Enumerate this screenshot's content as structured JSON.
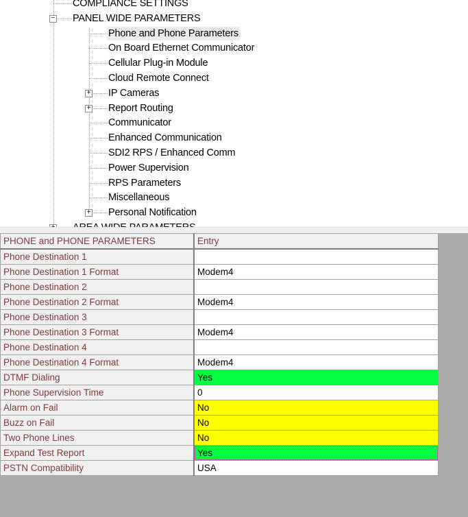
{
  "tree": {
    "items": [
      {
        "label": "COMPLIANCE SETTINGS",
        "level": 1,
        "expander": "none"
      },
      {
        "label": "PANEL WIDE PARAMETERS",
        "level": 1,
        "expander": "minus"
      },
      {
        "label": "Phone and Phone Parameters",
        "level": 2,
        "expander": "none",
        "selected": true
      },
      {
        "label": "On Board Ethernet Communicator",
        "level": 2,
        "expander": "none"
      },
      {
        "label": "Cellular Plug-in Module",
        "level": 2,
        "expander": "none"
      },
      {
        "label": "Cloud Remote Connect",
        "level": 2,
        "expander": "none"
      },
      {
        "label": "IP Cameras",
        "level": 2,
        "expander": "plus"
      },
      {
        "label": "Report Routing",
        "level": 2,
        "expander": "plus"
      },
      {
        "label": "Communicator",
        "level": 2,
        "expander": "none"
      },
      {
        "label": "Enhanced Communication",
        "level": 2,
        "expander": "none"
      },
      {
        "label": "SDI2 RPS / Enhanced Comm",
        "level": 2,
        "expander": "none"
      },
      {
        "label": "Power Supervision",
        "level": 2,
        "expander": "none"
      },
      {
        "label": "RPS Parameters",
        "level": 2,
        "expander": "none"
      },
      {
        "label": "Miscellaneous",
        "level": 2,
        "expander": "none"
      },
      {
        "label": "Personal Notification",
        "level": 2,
        "expander": "plus"
      },
      {
        "label": "AREA WIDE PARAMETERS",
        "level": 1,
        "expander": "plus"
      }
    ]
  },
  "grid": {
    "header": {
      "name": "PHONE and PHONE PARAMETERS",
      "entry": "Entry"
    },
    "rows": [
      {
        "name": "Phone Destination 1",
        "value": "",
        "color": "#ffffff"
      },
      {
        "name": "Phone Destination 1 Format",
        "value": "Modem4",
        "color": "#ffffff"
      },
      {
        "name": "Phone Destination 2",
        "value": "",
        "color": "#ffffff"
      },
      {
        "name": "Phone Destination 2 Format",
        "value": "Modem4",
        "color": "#ffffff"
      },
      {
        "name": "Phone Destination 3",
        "value": "",
        "color": "#ffffff"
      },
      {
        "name": "Phone Destination 3 Format",
        "value": "Modem4",
        "color": "#ffffff"
      },
      {
        "name": "Phone Destination 4",
        "value": "",
        "color": "#ffffff"
      },
      {
        "name": "Phone Destination 4 Format",
        "value": "Modem4",
        "color": "#ffffff"
      },
      {
        "name": "DTMF Dialing",
        "value": "Yes",
        "color": "#00ff40"
      },
      {
        "name": "Phone Supervision Time",
        "value": "0",
        "color": "#ffffff"
      },
      {
        "name": "Alarm on Fail",
        "value": "No",
        "color": "#ffff00"
      },
      {
        "name": "Buzz on Fail",
        "value": "No",
        "color": "#ffff00"
      },
      {
        "name": "Two Phone Lines",
        "value": "No",
        "color": "#ffff00"
      },
      {
        "name": "Expand Test Report",
        "value": "Yes",
        "color": "#00ff40",
        "focused": true
      },
      {
        "name": "PSTN Compatibility",
        "value": "USA",
        "color": "#ffffff"
      }
    ]
  }
}
